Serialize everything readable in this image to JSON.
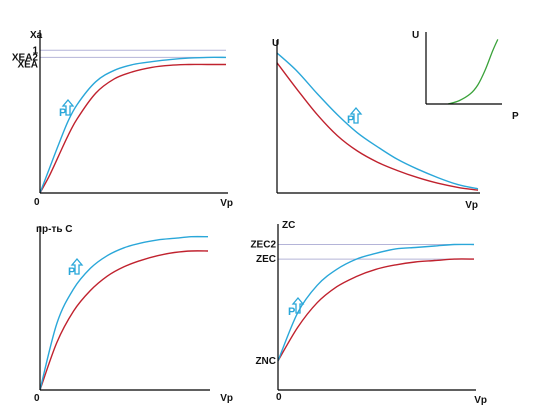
{
  "colors": {
    "red": "#c0222e",
    "blue": "#2aa7d9",
    "green": "#3aa23a",
    "ref": "#b4b4d8",
    "arrow": "#2aa7d9",
    "axis": "#000000"
  },
  "chart_data": [
    {
      "id": "top-left",
      "type": "line",
      "ylabel": "Xa",
      "xlabel": "Vp",
      "origin_label": "0",
      "ylim": [
        0,
        1.1
      ],
      "xlim": [
        0,
        1
      ],
      "y_ticks": [
        {
          "label": "1",
          "value": 1.0
        },
        {
          "label": "XEA2",
          "value": 0.95
        },
        {
          "label": "XEA",
          "value": 0.9
        }
      ],
      "ref_lines": [
        1.0,
        0.95
      ],
      "annotation": "P",
      "series": [
        {
          "color": "red",
          "x": [
            0,
            0.05,
            0.1,
            0.15,
            0.2,
            0.3,
            0.4,
            0.5,
            0.6,
            0.7,
            0.8,
            0.9,
            1.0
          ],
          "y": [
            0,
            0.12,
            0.26,
            0.4,
            0.52,
            0.7,
            0.8,
            0.85,
            0.88,
            0.895,
            0.9,
            0.9,
            0.9
          ]
        },
        {
          "color": "blue",
          "x": [
            0,
            0.05,
            0.1,
            0.15,
            0.2,
            0.3,
            0.4,
            0.5,
            0.6,
            0.7,
            0.8,
            0.9,
            1.0
          ],
          "y": [
            0,
            0.17,
            0.34,
            0.5,
            0.62,
            0.78,
            0.86,
            0.9,
            0.92,
            0.935,
            0.945,
            0.95,
            0.95
          ]
        }
      ]
    },
    {
      "id": "top-right",
      "type": "line",
      "ylabel": "U",
      "xlabel": "Vp",
      "origin_label": "",
      "ylim": [
        0,
        1.05
      ],
      "xlim": [
        0,
        1
      ],
      "annotation": "P",
      "series": [
        {
          "color": "red",
          "x": [
            0,
            0.1,
            0.2,
            0.3,
            0.4,
            0.5,
            0.6,
            0.7,
            0.8,
            0.9,
            1.0
          ],
          "y": [
            0.93,
            0.74,
            0.56,
            0.41,
            0.3,
            0.22,
            0.16,
            0.11,
            0.07,
            0.04,
            0.02
          ]
        },
        {
          "color": "blue",
          "x": [
            0,
            0.1,
            0.2,
            0.3,
            0.4,
            0.5,
            0.6,
            0.7,
            0.8,
            0.9,
            1.0
          ],
          "y": [
            1.0,
            0.87,
            0.71,
            0.56,
            0.43,
            0.33,
            0.24,
            0.17,
            0.11,
            0.06,
            0.03
          ]
        }
      ],
      "inset": {
        "ylabel": "U",
        "xlabel": "P",
        "series": [
          {
            "color": "green",
            "x": [
              0.3,
              0.45,
              0.6,
              0.7,
              0.8,
              0.9,
              0.97
            ],
            "y": [
              0,
              0.05,
              0.15,
              0.28,
              0.5,
              0.78,
              0.95
            ]
          }
        ]
      }
    },
    {
      "id": "bottom-left",
      "type": "line",
      "ylabel": "пр-ть С",
      "xlabel": "Vp",
      "origin_label": "0",
      "ylim": [
        0,
        1.0
      ],
      "xlim": [
        0,
        1
      ],
      "annotation": "P",
      "series": [
        {
          "color": "red",
          "x": [
            0,
            0.1,
            0.2,
            0.3,
            0.4,
            0.5,
            0.6,
            0.7,
            0.8,
            0.9,
            1.0
          ],
          "y": [
            0,
            0.3,
            0.5,
            0.63,
            0.72,
            0.78,
            0.82,
            0.85,
            0.87,
            0.88,
            0.88
          ]
        },
        {
          "color": "blue",
          "x": [
            0,
            0.1,
            0.2,
            0.3,
            0.4,
            0.5,
            0.6,
            0.7,
            0.8,
            0.9,
            1.0
          ],
          "y": [
            0,
            0.42,
            0.64,
            0.77,
            0.85,
            0.9,
            0.93,
            0.95,
            0.96,
            0.97,
            0.97
          ]
        }
      ]
    },
    {
      "id": "bottom-right",
      "type": "line",
      "ylabel": "ZC",
      "xlabel": "Vp",
      "origin_label": "0",
      "ylim": [
        0,
        1.1
      ],
      "xlim": [
        0,
        1
      ],
      "y_ticks": [
        {
          "label": "ZEC2",
          "value": 1.0
        },
        {
          "label": "ZEC",
          "value": 0.9
        },
        {
          "label": "ZNC",
          "value": 0.2
        }
      ],
      "ref_lines": [
        1.0,
        0.9
      ],
      "annotation": "P",
      "series": [
        {
          "color": "red",
          "x": [
            0,
            0.1,
            0.2,
            0.3,
            0.4,
            0.5,
            0.6,
            0.7,
            0.8,
            0.9,
            1.0
          ],
          "y": [
            0.2,
            0.43,
            0.6,
            0.71,
            0.78,
            0.83,
            0.86,
            0.88,
            0.89,
            0.9,
            0.9
          ]
        },
        {
          "color": "blue",
          "x": [
            0,
            0.1,
            0.2,
            0.3,
            0.4,
            0.5,
            0.6,
            0.7,
            0.8,
            0.9,
            1.0
          ],
          "y": [
            0.2,
            0.53,
            0.72,
            0.83,
            0.9,
            0.94,
            0.97,
            0.98,
            0.99,
            1.0,
            1.0
          ]
        }
      ]
    }
  ]
}
